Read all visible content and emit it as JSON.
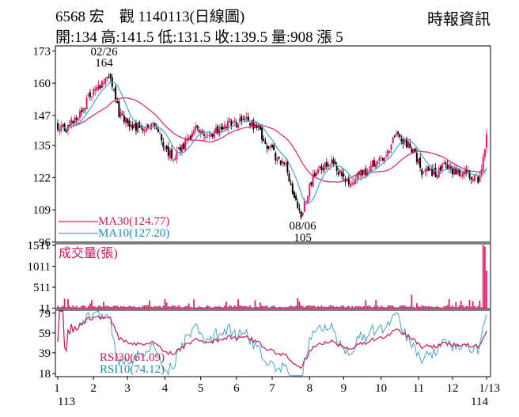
{
  "header": {
    "title": "6568 宏　觀 1140113(日線圖)",
    "ohlc": "開:134 高:141.5 低:131.5 收:139.5 量:908 漲 5",
    "source": "時報資訊"
  },
  "colors": {
    "up": "#e0176b",
    "down": "#000000",
    "ma30": "#d8246a",
    "ma10": "#4aa3c8",
    "volume": "#d8246a",
    "rsi30": "#c8185c",
    "rsi10": "#4aa3c8",
    "label_red": "#c8185c",
    "label_blue": "#1b8ab3"
  },
  "chart_data": [
    {
      "type": "candlestick",
      "panel": "price",
      "yticks": [
        96,
        109,
        122,
        135,
        147,
        160,
        173
      ],
      "ylim": [
        96,
        175
      ],
      "x_month_labels": [
        "1",
        "2",
        "3",
        "4",
        "5",
        "6",
        "7",
        "8",
        "9",
        "10",
        "11",
        "12",
        "1/13"
      ],
      "x_year_labels": [
        "113",
        "114"
      ],
      "annotations": [
        {
          "date": "02/26",
          "value": "164",
          "kind": "high"
        },
        {
          "date": "08/06",
          "value": "105",
          "kind": "low"
        }
      ],
      "legend": [
        {
          "label": "MA30(124.77)",
          "series": "ma30"
        },
        {
          "label": "MA10(127.20)",
          "series": "ma10"
        }
      ],
      "anchors": [
        [
          0,
          143
        ],
        [
          5,
          142
        ],
        [
          10,
          146
        ],
        [
          15,
          149
        ],
        [
          18,
          154
        ],
        [
          22,
          158
        ],
        [
          27,
          161
        ],
        [
          30,
          164
        ],
        [
          33,
          158
        ],
        [
          36,
          147
        ],
        [
          40,
          145
        ],
        [
          45,
          143
        ],
        [
          50,
          142
        ],
        [
          55,
          144
        ],
        [
          60,
          139
        ],
        [
          64,
          133
        ],
        [
          68,
          129
        ],
        [
          72,
          133
        ],
        [
          76,
          137
        ],
        [
          80,
          141
        ],
        [
          85,
          141
        ],
        [
          90,
          140
        ],
        [
          95,
          142
        ],
        [
          100,
          144
        ],
        [
          105,
          143
        ],
        [
          110,
          146
        ],
        [
          115,
          143
        ],
        [
          120,
          139
        ],
        [
          125,
          133
        ],
        [
          130,
          129
        ],
        [
          135,
          125
        ],
        [
          138,
          116
        ],
        [
          141,
          110
        ],
        [
          143,
          105
        ],
        [
          146,
          114
        ],
        [
          150,
          122
        ],
        [
          155,
          126
        ],
        [
          160,
          128
        ],
        [
          165,
          125
        ],
        [
          170,
          120
        ],
        [
          175,
          122
        ],
        [
          180,
          124
        ],
        [
          185,
          128
        ],
        [
          190,
          129
        ],
        [
          195,
          133
        ],
        [
          198,
          140
        ],
        [
          202,
          136
        ],
        [
          206,
          136
        ],
        [
          210,
          132
        ],
        [
          214,
          125
        ],
        [
          218,
          125
        ],
        [
          222,
          124
        ],
        [
          227,
          127
        ],
        [
          232,
          125
        ],
        [
          237,
          124
        ],
        [
          242,
          123
        ],
        [
          246,
          122
        ],
        [
          248,
          121
        ],
        [
          250,
          131
        ],
        [
          252,
          139.5
        ]
      ],
      "last_candle": {
        "open": 134,
        "high": 141.5,
        "low": 131.5,
        "close": 139.5
      }
    },
    {
      "type": "bar",
      "panel": "volume",
      "title": "成交量(張)",
      "yticks": [
        11,
        511,
        1011,
        1511
      ],
      "ylim": [
        0,
        1550
      ],
      "spikes": [
        {
          "index": 250,
          "value": 1520
        },
        {
          "index": 251,
          "value": 1480
        },
        {
          "index": 252,
          "value": 908
        }
      ]
    },
    {
      "type": "line",
      "panel": "rsi",
      "yticks": [
        18,
        39,
        59,
        79
      ],
      "ylim": [
        15,
        82
      ],
      "legend": [
        {
          "label": "RSI30(61.09)",
          "series": "rsi30"
        },
        {
          "label": "RSI10(74.12)",
          "series": "rsi10"
        }
      ]
    }
  ]
}
